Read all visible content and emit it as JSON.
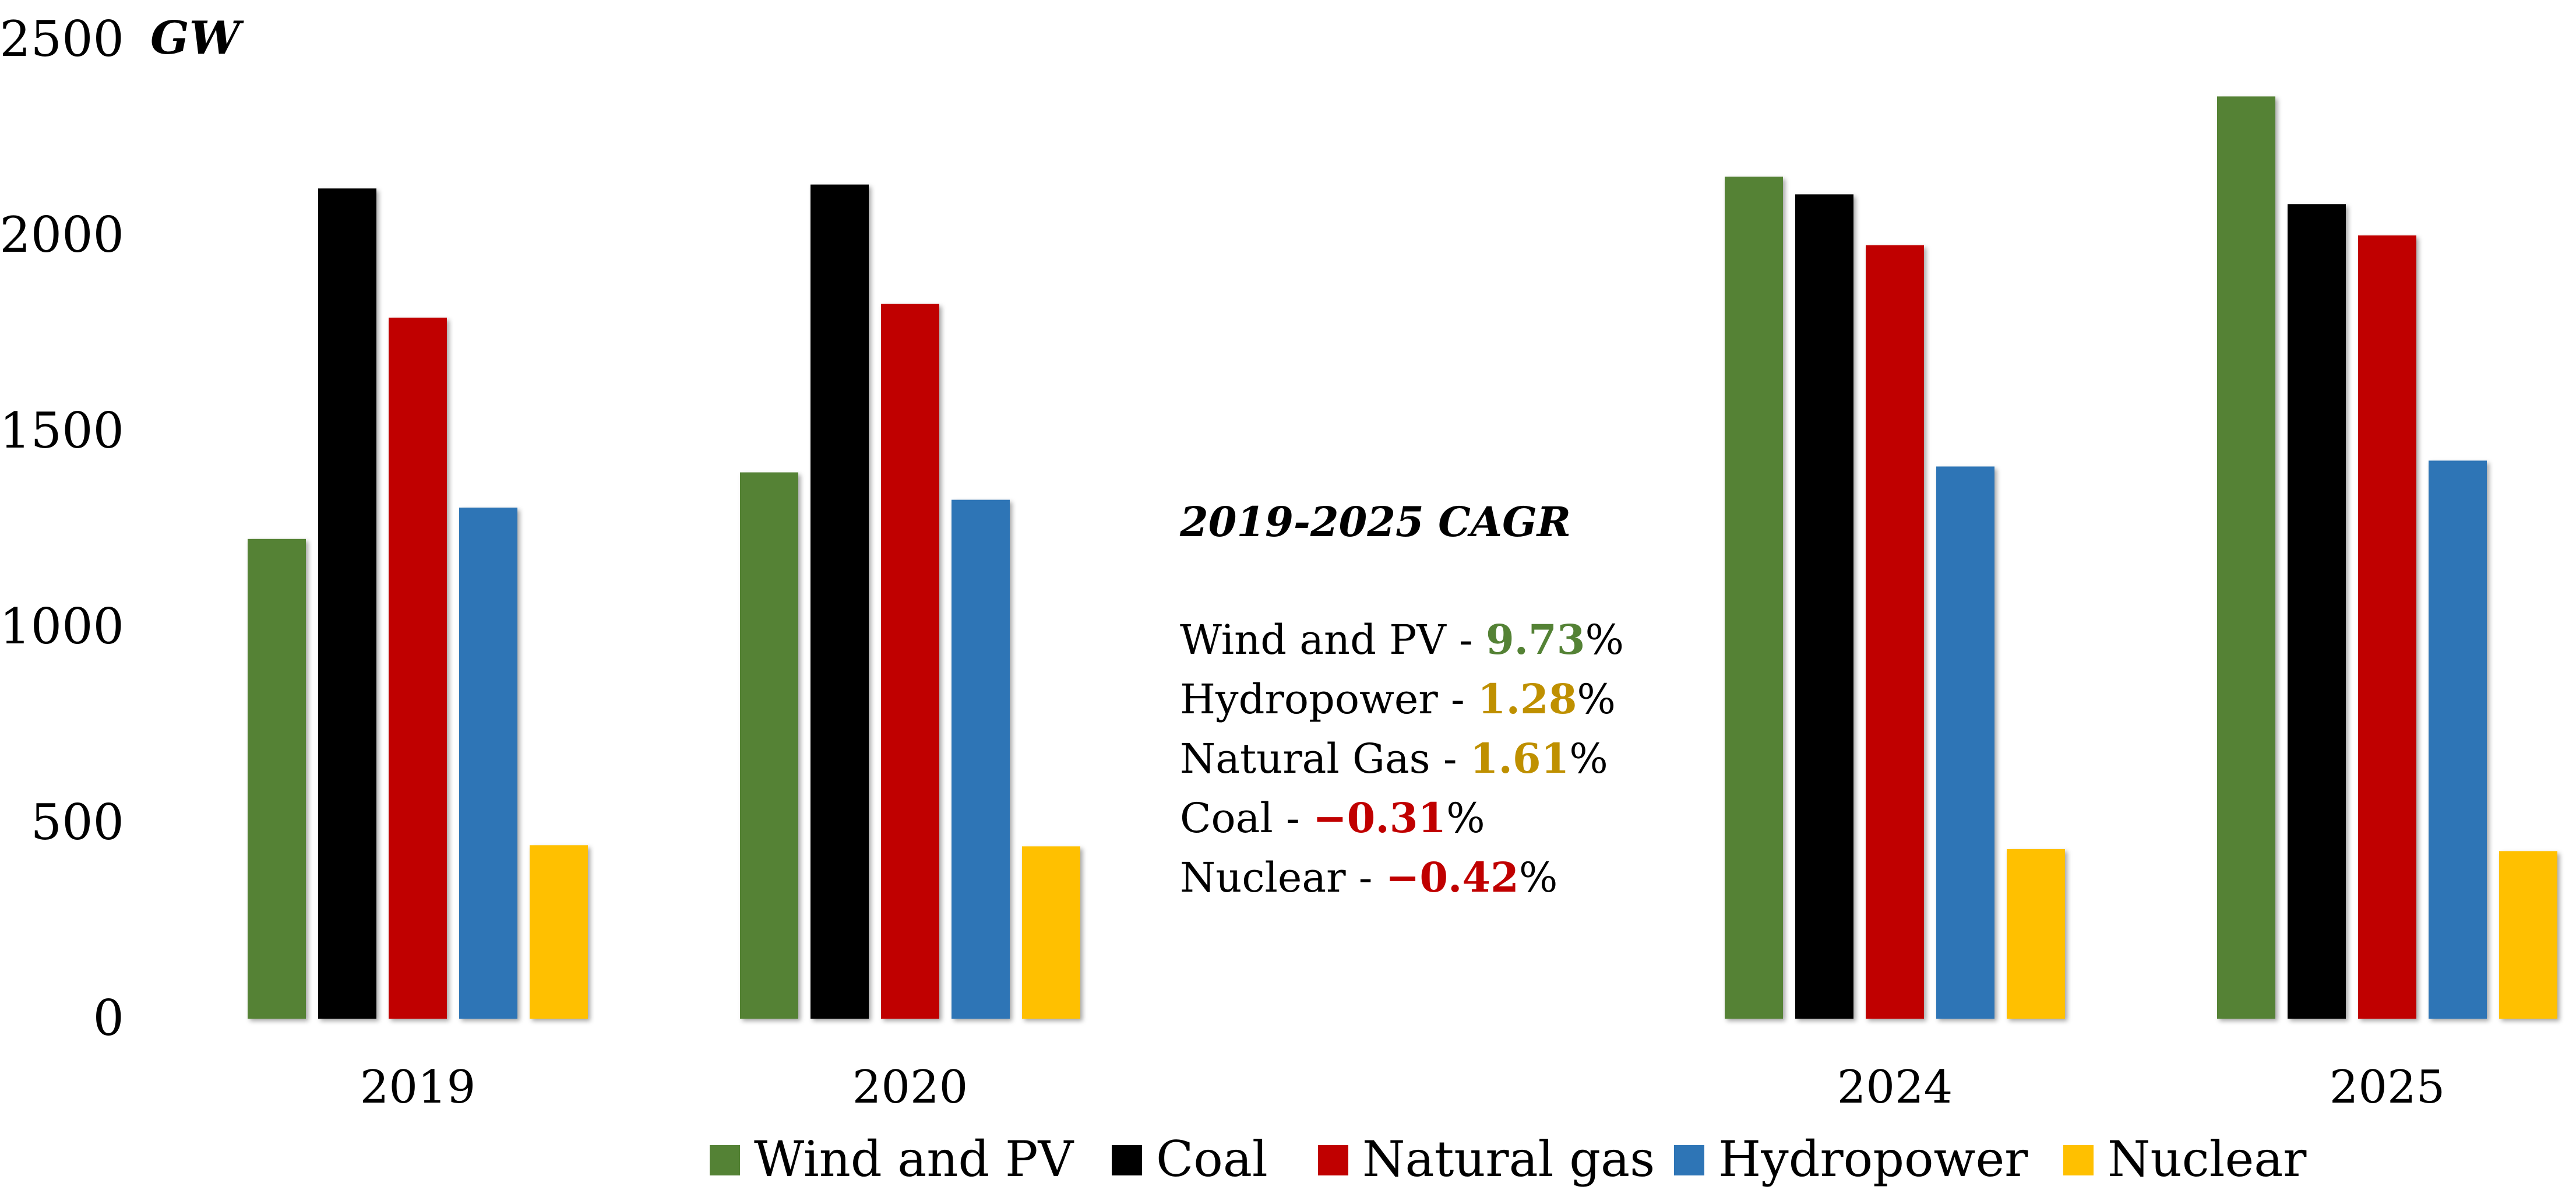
{
  "chart_data": {
    "type": "bar",
    "title": "",
    "ylabel": "GW",
    "xlabel": "",
    "ylim": [
      0,
      2500
    ],
    "yticks": [
      0,
      500,
      1000,
      1500,
      2000,
      2500
    ],
    "grid": false,
    "legend_position": "bottom",
    "categories": [
      "2019",
      "2020",
      "2024",
      "2025"
    ],
    "series": [
      {
        "name": "Wind and PV",
        "color": "#548235",
        "values": [
          1225,
          1395,
          2150,
          2355
        ]
      },
      {
        "name": "Coal",
        "color": "#000000",
        "values": [
          2120,
          2130,
          2105,
          2080
        ]
      },
      {
        "name": "Natural gas",
        "color": "#c00000",
        "values": [
          1790,
          1825,
          1975,
          2000
        ]
      },
      {
        "name": "Hydropower",
        "color": "#2e75b6",
        "values": [
          1305,
          1325,
          1410,
          1425
        ]
      },
      {
        "name": "Nuclear",
        "color": "#ffc000",
        "values": [
          443,
          440,
          433,
          428
        ]
      }
    ]
  },
  "cagr": {
    "title": "2019-2025 CAGR",
    "items": [
      {
        "label": "Wind and PV - ",
        "value": "9.73",
        "unit": "%",
        "color": "#548235"
      },
      {
        "label": "Hydropower - ",
        "value": "1.28",
        "unit": "%",
        "color": "#bf9000"
      },
      {
        "label": "Natural Gas - ",
        "value": "1.61",
        "unit": "%",
        "color": "#bf9000"
      },
      {
        "label": "Coal - ",
        "value": "−0.31",
        "unit": "%",
        "color": "#c00000"
      },
      {
        "label": "Nuclear - ",
        "value": "−0.42",
        "unit": "%",
        "color": "#c00000"
      }
    ]
  }
}
